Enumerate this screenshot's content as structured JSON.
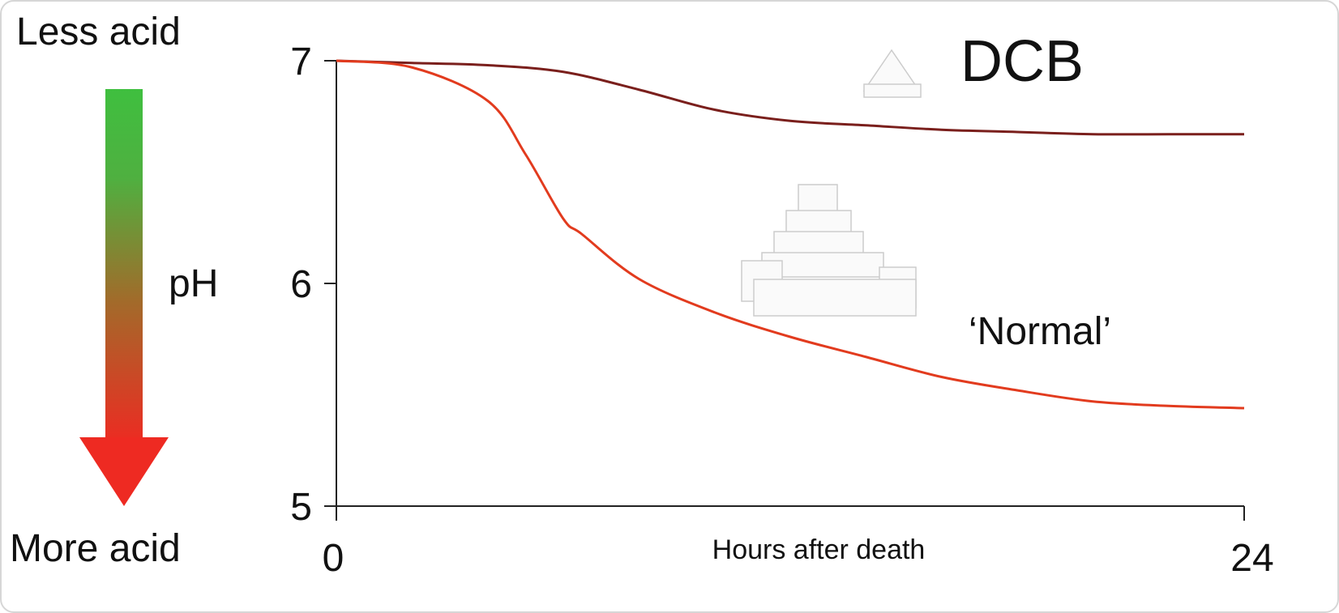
{
  "chart_data": {
    "type": "line",
    "x_label": "Hours after death",
    "top_label": "Less acid",
    "bottom_label": "More acid",
    "y_label": "pH",
    "xlim": [
      0,
      24
    ],
    "xticks": [
      0,
      24
    ],
    "ylim": [
      5,
      7
    ],
    "yticks": [
      5,
      6,
      7
    ],
    "series": [
      {
        "name": "DCB",
        "color": "#7a1f1c",
        "x": [
          0,
          2,
          4,
          6,
          8,
          10,
          12,
          14,
          16,
          18,
          20,
          22,
          24
        ],
        "values": [
          7,
          6.99,
          6.98,
          6.95,
          6.87,
          6.78,
          6.73,
          6.71,
          6.69,
          6.68,
          6.67,
          6.67,
          6.67
        ]
      },
      {
        "name": "‘Normal’",
        "color": "#e23b1e",
        "x": [
          0,
          2,
          4,
          5,
          6,
          6.5,
          8,
          10,
          12,
          14,
          16,
          18,
          20,
          22,
          24
        ],
        "values": [
          7,
          6.97,
          6.82,
          6.58,
          6.29,
          6.22,
          6.02,
          5.87,
          5.76,
          5.67,
          5.58,
          5.52,
          5.47,
          5.45,
          5.44
        ]
      }
    ]
  }
}
